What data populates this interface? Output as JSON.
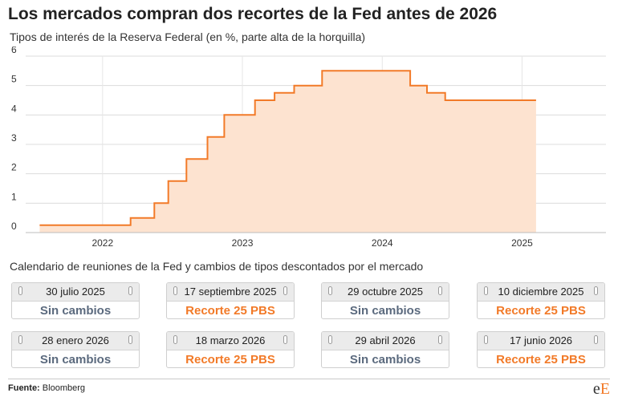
{
  "header": {
    "title": "Los mercados compran dos recortes de la Fed antes de 2026",
    "subtitle": "Tipos de interés de la Reserva Federal (en %, parte alta de la horquilla)"
  },
  "chart_data": {
    "type": "area",
    "step": true,
    "ylim": [
      0,
      6
    ],
    "yticks": [
      "0",
      "1",
      "2",
      "3",
      "4",
      "5",
      "6"
    ],
    "xlim": [
      2021.45,
      2025.6
    ],
    "xticks": [
      {
        "value": 2022,
        "label": "2022"
      },
      {
        "value": 2023,
        "label": "2023"
      },
      {
        "value": 2024,
        "label": "2024"
      },
      {
        "value": 2025,
        "label": "2025"
      }
    ],
    "grid": true,
    "series": [
      {
        "x": [
          2021.55,
          2022.2,
          2022.37,
          2022.47,
          2022.6,
          2022.75,
          2022.87,
          2023.09,
          2023.23,
          2023.37,
          2023.57,
          2024.2,
          2024.32,
          2024.45,
          2025.1
        ],
        "values": [
          0.25,
          0.5,
          1.0,
          1.75,
          2.5,
          3.25,
          4.0,
          4.5,
          4.75,
          5.0,
          5.5,
          5.0,
          4.75,
          4.5,
          4.5
        ],
        "color": "#f27a28",
        "fill": "#fde3d0"
      }
    ]
  },
  "calendar": {
    "title": "Calendario de reuniones de la Fed y cambios de tipos descontados por el mercado",
    "meetings": [
      {
        "date": "30 julio 2025",
        "outcome": "Sin cambios",
        "kind": "neutral"
      },
      {
        "date": "17 septiembre 2025",
        "outcome": "Recorte 25 PBS",
        "kind": "cut"
      },
      {
        "date": "29 octubre 2025",
        "outcome": "Sin cambios",
        "kind": "neutral"
      },
      {
        "date": "10 diciembre 2025",
        "outcome": "Recorte 25 PBS",
        "kind": "cut"
      },
      {
        "date": "28 enero 2026",
        "outcome": "Sin cambios",
        "kind": "neutral"
      },
      {
        "date": "18 marzo 2026",
        "outcome": "Recorte 25 PBS",
        "kind": "cut"
      },
      {
        "date": "29 abril 2026",
        "outcome": "Sin cambios",
        "kind": "neutral"
      },
      {
        "date": "17 junio 2026",
        "outcome": "Recorte 25 PBS",
        "kind": "cut"
      }
    ]
  },
  "footer": {
    "source_label": "Fuente:",
    "source_name": "Bloomberg",
    "logo_e": "e",
    "logo_E": "E"
  }
}
